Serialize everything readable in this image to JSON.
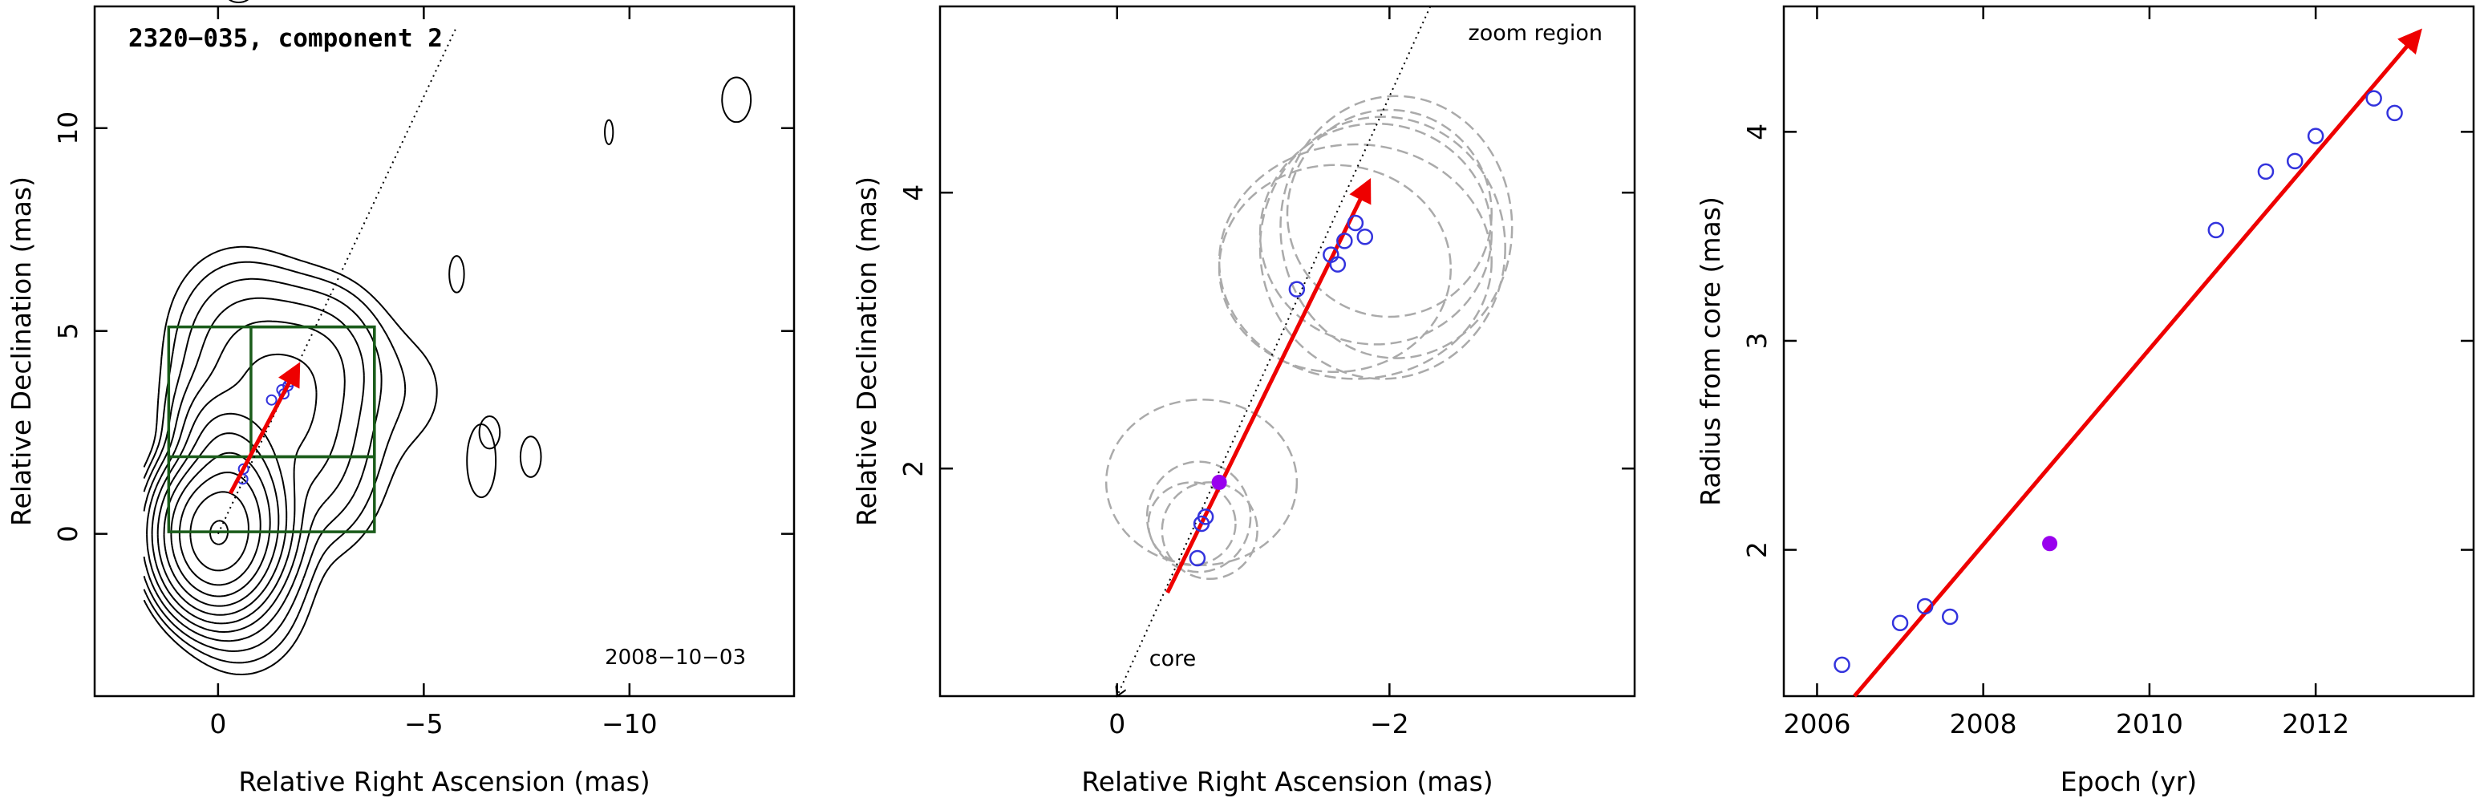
{
  "colors": {
    "contour": "#000000",
    "arrow": "#ee0000",
    "open_marker": "#3333dd",
    "filled_marker": "#9900ee",
    "box": "#1a5c1a",
    "ellipse": "#aaaaaa"
  },
  "chart_data": [
    {
      "type": "contour",
      "title": "2320−035, component 2",
      "date_label": "2008−10−03",
      "xlabel": "Relative Right Ascension (mas)",
      "ylabel": "Relative Declination (mas)",
      "xlim": [
        3.0,
        -14.0
      ],
      "ylim": [
        -4.0,
        13.0
      ],
      "x_ticks": [
        {
          "v": 0,
          "label": "0"
        },
        {
          "v": -5,
          "label": "−5"
        },
        {
          "v": -10,
          "label": "−10"
        }
      ],
      "y_ticks": [
        {
          "v": 0,
          "label": "0"
        },
        {
          "v": 5,
          "label": "5"
        },
        {
          "v": 10,
          "label": "10"
        }
      ],
      "arrow": {
        "from": [
          -0.3,
          1.0
        ],
        "to": [
          -1.95,
          4.15
        ]
      },
      "direction_line": {
        "from": [
          0,
          0
        ],
        "to": [
          -5.8,
          12.5
        ]
      },
      "markers": [
        [
          -1.3,
          3.3
        ],
        [
          -1.55,
          3.55
        ],
        [
          -1.6,
          3.45
        ],
        [
          -1.7,
          3.65
        ],
        [
          -1.75,
          3.75
        ],
        [
          -0.6,
          1.35
        ],
        [
          -0.62,
          1.6
        ]
      ],
      "boxes": [
        {
          "x": [
            1.2,
            -3.8
          ],
          "y": [
            0.05,
            5.1
          ]
        },
        {
          "x": [
            -0.8,
            -3.8
          ],
          "y": [
            1.9,
            5.1
          ]
        },
        {
          "x": [
            1.2,
            -3.8
          ],
          "y": [
            1.9,
            1.9
          ]
        }
      ]
    },
    {
      "type": "scatter",
      "annotation_top": "zoom region",
      "annotation_bottom": "core",
      "xlabel": "Relative Right Ascension (mas)",
      "ylabel": "Relative Declination (mas)",
      "xlim": [
        1.3,
        -3.8
      ],
      "ylim": [
        0.35,
        5.35
      ],
      "x_ticks": [
        {
          "v": 0,
          "label": "0"
        },
        {
          "v": -2,
          "label": "−2"
        }
      ],
      "y_ticks": [
        {
          "v": 2,
          "label": "2"
        },
        {
          "v": 4,
          "label": "4"
        }
      ],
      "arrow": {
        "from": [
          -0.37,
          1.1
        ],
        "to": [
          -1.85,
          4.08
        ]
      },
      "direction_line": {
        "from": [
          0.0,
          0.35
        ],
        "to": [
          -2.3,
          5.35
        ]
      },
      "open_points": [
        [
          -0.59,
          1.35
        ],
        [
          -0.62,
          1.6
        ],
        [
          -0.65,
          1.65
        ],
        [
          -1.32,
          3.3
        ],
        [
          -1.57,
          3.55
        ],
        [
          -1.62,
          3.48
        ],
        [
          -1.67,
          3.65
        ],
        [
          -1.75,
          3.78
        ],
        [
          -1.82,
          3.68
        ]
      ],
      "filled_points": [
        [
          -0.75,
          1.9
        ]
      ],
      "ellipses": [
        {
          "cx": -1.6,
          "cy": 3.45,
          "rx": 0.85,
          "ry": 0.75
        },
        {
          "cx": -1.75,
          "cy": 3.5,
          "rx": 1.0,
          "ry": 0.85
        },
        {
          "cx": -1.95,
          "cy": 3.6,
          "rx": 0.9,
          "ry": 0.95
        },
        {
          "cx": -1.9,
          "cy": 3.7,
          "rx": 0.85,
          "ry": 0.8
        },
        {
          "cx": -2.05,
          "cy": 3.75,
          "rx": 0.85,
          "ry": 0.95
        },
        {
          "cx": -2.0,
          "cy": 3.85,
          "rx": 0.75,
          "ry": 0.75
        },
        {
          "cx": -0.62,
          "cy": 1.9,
          "rx": 0.7,
          "ry": 0.6
        },
        {
          "cx": -0.6,
          "cy": 1.65,
          "rx": 0.38,
          "ry": 0.4
        },
        {
          "cx": -0.55,
          "cy": 1.6,
          "rx": 0.32,
          "ry": 0.3
        },
        {
          "cx": -0.68,
          "cy": 1.55,
          "rx": 0.35,
          "ry": 0.35
        }
      ]
    },
    {
      "type": "scatter",
      "xlabel": "Epoch (yr)",
      "ylabel": "Radius from core (mas)",
      "xlim": [
        2005.6,
        2013.9
      ],
      "ylim": [
        1.3,
        4.6
      ],
      "x_ticks": [
        {
          "v": 2006,
          "label": "2006"
        },
        {
          "v": 2008,
          "label": "2008"
        },
        {
          "v": 2010,
          "label": "2010"
        },
        {
          "v": 2012,
          "label": "2012"
        }
      ],
      "y_ticks": [
        {
          "v": 2,
          "label": "2"
        },
        {
          "v": 3,
          "label": "3"
        },
        {
          "v": 4,
          "label": "4"
        }
      ],
      "fit_line": {
        "from": [
          2006.45,
          1.3
        ],
        "to": [
          2013.25,
          4.48
        ]
      },
      "open_points": [
        [
          2006.3,
          1.45
        ],
        [
          2007.0,
          1.65
        ],
        [
          2007.3,
          1.73
        ],
        [
          2007.6,
          1.68
        ],
        [
          2010.8,
          3.53
        ],
        [
          2011.4,
          3.81
        ],
        [
          2011.75,
          3.86
        ],
        [
          2012.0,
          3.98
        ],
        [
          2012.7,
          4.16
        ],
        [
          2012.95,
          4.09
        ]
      ],
      "filled_points": [
        [
          2008.8,
          2.03
        ]
      ]
    }
  ]
}
